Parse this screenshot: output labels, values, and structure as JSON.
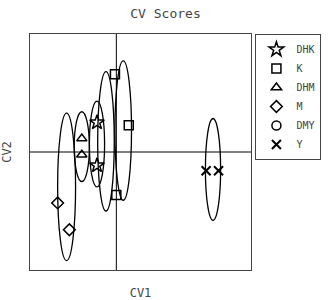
{
  "chart_data": {
    "type": "scatter",
    "title": "CV Scores",
    "xlabel": "CV1",
    "ylabel": "CV2",
    "color": "#000000",
    "series": [
      {
        "name": "DHK",
        "marker": "star",
        "x": [
          -0.28,
          -0.28
        ],
        "values": [
          0.22,
          -0.1
        ]
      },
      {
        "name": "K",
        "marker": "square",
        "x": [
          -0.02,
          0.18,
          0.0
        ],
        "values": [
          0.58,
          0.2,
          -0.32
        ]
      },
      {
        "name": "DHM",
        "marker": "triangle-up",
        "x": [
          -0.5,
          -0.5
        ],
        "values": [
          0.1,
          -0.02
        ]
      },
      {
        "name": "M",
        "marker": "diamond",
        "x": [
          -0.85,
          -0.68
        ],
        "values": [
          -0.38,
          -0.58
        ]
      },
      {
        "name": "DMY",
        "marker": "circle",
        "x": [],
        "values": []
      },
      {
        "name": "Y",
        "marker": "x",
        "x": [
          1.3,
          1.48
        ],
        "values": [
          -0.14,
          -0.14
        ]
      }
    ],
    "ellipses": [
      {
        "cx": -0.28,
        "cy": 0.06,
        "rx": 0.11,
        "ry": 0.32
      },
      {
        "cx": -0.5,
        "cy": 0.04,
        "rx": 0.11,
        "ry": 0.26
      },
      {
        "cx": -0.15,
        "cy": 0.08,
        "rx": 0.12,
        "ry": 0.52
      },
      {
        "cx": 0.1,
        "cy": 0.16,
        "rx": 0.12,
        "ry": 0.52
      },
      {
        "cx": -0.72,
        "cy": -0.26,
        "rx": 0.13,
        "ry": 0.55
      },
      {
        "cx": 1.4,
        "cy": -0.13,
        "rx": 0.11,
        "ry": 0.38
      }
    ],
    "zero_lines": {
      "x": 0.0,
      "y": 0.0
    },
    "xlim": [
      -1.25,
      1.95
    ],
    "ylim": [
      -0.88,
      0.88
    ],
    "xticks": [],
    "yticks": [],
    "tick_labels": false,
    "grid": false,
    "legend": "upper right"
  }
}
